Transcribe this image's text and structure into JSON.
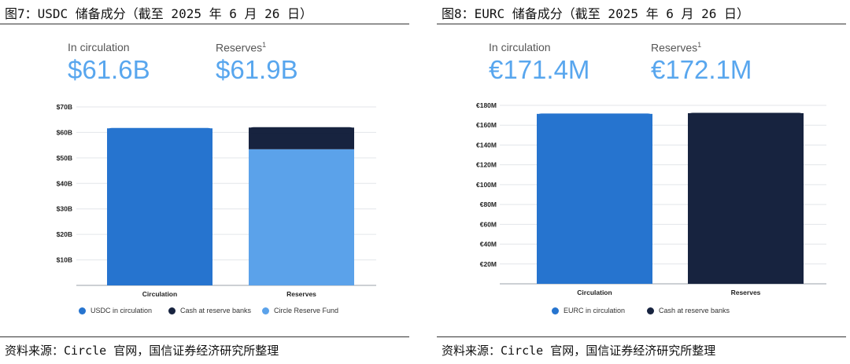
{
  "figures": [
    {
      "id": "fig7",
      "title": "图7：USDC 储备成分（截至 2025 年 6 月 26 日）",
      "stats": [
        {
          "label": "In circulation",
          "sup": "",
          "value": "$61.6B"
        },
        {
          "label": "Reserves",
          "sup": "1",
          "value": "$61.9B"
        }
      ],
      "source": "资料来源：Circle 官网，国信证券经济研究所整理"
    },
    {
      "id": "fig8",
      "title": "图8：EURC 储备成分（截至 2025 年 6 月 26 日）",
      "stats": [
        {
          "label": "In circulation",
          "sup": "",
          "value": "€171.4M"
        },
        {
          "label": "Reserves",
          "sup": "1",
          "value": "€172.1M"
        }
      ],
      "source": "资料来源：Circle 官网，国信证券经济研究所整理"
    }
  ],
  "chart_data": [
    {
      "type": "bar",
      "stacked": true,
      "categories": [
        "Circulation",
        "Reserves"
      ],
      "series": [
        {
          "name": "USDC in circulation",
          "color": "#2674cf",
          "values": [
            61.6,
            0
          ]
        },
        {
          "name": "Circle Reserve Fund",
          "color": "#5ba2ea",
          "values": [
            0,
            53.4
          ]
        },
        {
          "name": "Cash at reserve banks",
          "color": "#17233f",
          "values": [
            0,
            8.5
          ]
        }
      ],
      "legend_order": [
        "USDC in circulation",
        "Cash at reserve banks",
        "Circle Reserve Fund"
      ],
      "yticks": [
        "",
        "$10B",
        "$20B",
        "$30B",
        "$40B",
        "$50B",
        "$60B",
        "$70B"
      ],
      "ylim": [
        0,
        70
      ],
      "grid": true,
      "legend_position": "bottom"
    },
    {
      "type": "bar",
      "stacked": true,
      "categories": [
        "Circulation",
        "Reserves"
      ],
      "series": [
        {
          "name": "EURC in circulation",
          "color": "#2674cf",
          "values": [
            171.4,
            0
          ]
        },
        {
          "name": "Cash at reserve banks",
          "color": "#17233f",
          "values": [
            0,
            172.1
          ]
        }
      ],
      "legend_order": [
        "EURC in circulation",
        "Cash at reserve banks"
      ],
      "yticks": [
        "",
        "€20M",
        "€40M",
        "€60M",
        "€80M",
        "€100M",
        "€120M",
        "€140M",
        "€160M",
        "€180M"
      ],
      "ylim": [
        0,
        180
      ],
      "grid": true,
      "legend_position": "bottom"
    }
  ]
}
